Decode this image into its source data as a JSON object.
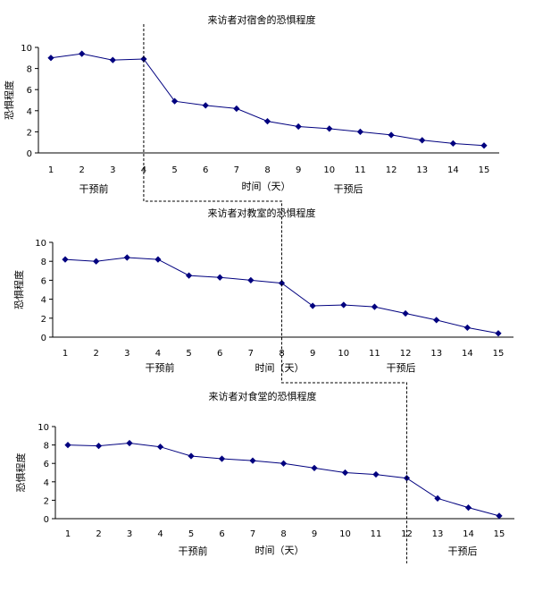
{
  "chart_data": [
    {
      "type": "line",
      "title": "来访者对宿舍的恐惧程度",
      "ylabel": "恐惧程度",
      "xlabel": "时间（天）",
      "ylim": [
        0,
        10
      ],
      "yticks": [
        0,
        2,
        4,
        6,
        8,
        10
      ],
      "categories": [
        "1",
        "2",
        "3",
        "4",
        "5",
        "6",
        "7",
        "8",
        "9",
        "10",
        "11",
        "12",
        "13",
        "14",
        "15"
      ],
      "values": [
        9.0,
        9.4,
        8.8,
        8.9,
        4.9,
        4.5,
        4.2,
        3.0,
        2.5,
        2.3,
        2.0,
        1.7,
        1.2,
        0.9,
        0.7
      ],
      "intervention_day": 4,
      "before_label": "干预前",
      "after_label": "干预后",
      "grid": false,
      "color": "#00007f"
    },
    {
      "type": "line",
      "title": "来访者对教室的恐惧程度",
      "ylabel": "恐惧程度",
      "xlabel": "时间（天）",
      "ylim": [
        0,
        10
      ],
      "yticks": [
        0,
        2,
        4,
        6,
        8,
        10
      ],
      "categories": [
        "1",
        "2",
        "3",
        "4",
        "5",
        "6",
        "7",
        "8",
        "9",
        "10",
        "11",
        "12",
        "13",
        "14",
        "15"
      ],
      "values": [
        8.2,
        8.0,
        8.4,
        8.2,
        6.5,
        6.3,
        6.0,
        5.7,
        3.3,
        3.4,
        3.2,
        2.5,
        1.8,
        1.0,
        0.4
      ],
      "intervention_day": 8,
      "before_label": "干预前",
      "after_label": "干预后",
      "grid": false,
      "color": "#00007f"
    },
    {
      "type": "line",
      "title": "来访者对食堂的恐惧程度",
      "ylabel": "恐惧程度",
      "xlabel": "时间（天）",
      "ylim": [
        0,
        10
      ],
      "yticks": [
        0,
        2,
        4,
        6,
        8,
        10
      ],
      "categories": [
        "1",
        "2",
        "3",
        "4",
        "5",
        "6",
        "7",
        "8",
        "9",
        "10",
        "11",
        "12",
        "13",
        "14",
        "15"
      ],
      "values": [
        8.0,
        7.9,
        8.2,
        7.8,
        6.8,
        6.5,
        6.3,
        6.0,
        5.5,
        5.0,
        4.8,
        4.4,
        2.2,
        1.2,
        0.3
      ],
      "intervention_day": 12,
      "before_label": "干预前",
      "after_label": "干预后",
      "grid": false,
      "color": "#00007f"
    }
  ]
}
